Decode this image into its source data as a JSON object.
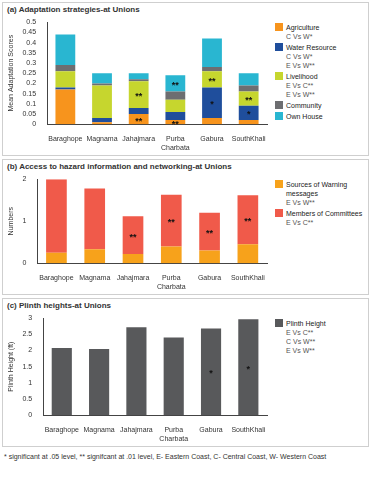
{
  "chart_data": [
    {
      "type": "bar",
      "title": "(a) Adaptation strategies-at Unions",
      "y_label": "Mean Adaptation Scores",
      "stacked": true,
      "grid": false,
      "legend": "right",
      "categories": [
        "Baraghope",
        "Magnama",
        "Jahajmara",
        "Purba Charbata",
        "Gabura",
        "SouthKhali"
      ],
      "series": [
        {
          "name": "Agriculture",
          "color": "#f7941d",
          "values": [
            0.17,
            0.01,
            0.05,
            0.02,
            0.03,
            0.02
          ],
          "notes": [
            "C Vs W*"
          ]
        },
        {
          "name": "Water Resource",
          "color": "#1f4e9c",
          "values": [
            0.01,
            0.02,
            0.03,
            0.04,
            0.15,
            0.07
          ],
          "notes": [
            "C Vs W*",
            "E Vs W**"
          ]
        },
        {
          "name": "Livelihood",
          "color": "#c6d62e",
          "values": [
            0.08,
            0.16,
            0.13,
            0.06,
            0.08,
            0.07
          ],
          "notes": [
            "E Vs C**",
            "E Vs W**"
          ]
        },
        {
          "name": "Community",
          "color": "#6d6e71",
          "values": [
            0.03,
            0.01,
            0.01,
            0.04,
            0.02,
            0.03
          ]
        },
        {
          "name": "Own House",
          "color": "#29b6d1",
          "values": [
            0.15,
            0.05,
            0.03,
            0.08,
            0.14,
            0.06
          ]
        }
      ],
      "annotations": [
        {
          "category": "Jahajmara",
          "series": "Livelihood",
          "label": "**"
        },
        {
          "category": "Jahajmara",
          "series": "Agriculture",
          "label": "**"
        },
        {
          "category": "Purba Charbata",
          "series": "Own House",
          "label": "**"
        },
        {
          "category": "Purba Charbata",
          "series": "Agriculture",
          "label": "**"
        },
        {
          "category": "Gabura",
          "series": "Livelihood",
          "label": "**"
        },
        {
          "category": "Gabura",
          "series": "Water Resource",
          "label": "*"
        },
        {
          "category": "SouthKhali",
          "series": "Livelihood",
          "label": "**"
        },
        {
          "category": "SouthKhali",
          "series": "Water Resource",
          "label": "*"
        }
      ],
      "ylim": [
        0,
        0.5
      ],
      "yticks": [
        0,
        0.05,
        0.1,
        0.15,
        0.2,
        0.25,
        0.3,
        0.35,
        0.4,
        0.45,
        0.5
      ]
    },
    {
      "type": "bar",
      "title": "(b) Access to hazard information and networking-at Unions",
      "y_label": "Numbers",
      "stacked": true,
      "grid": false,
      "legend": "right",
      "categories": [
        "Baraghope",
        "Magnama",
        "Jahajmara",
        "Purba Charbata",
        "Gabura",
        "SouthKhali"
      ],
      "series": [
        {
          "name": "Sources of Warning messages",
          "color": "#f7a21b",
          "values": [
            0.25,
            0.33,
            0.22,
            0.4,
            0.3,
            0.45
          ],
          "notes": [
            "E Vs W**"
          ]
        },
        {
          "name": "Members of Committees",
          "color": "#f05a4a",
          "values": [
            1.75,
            1.45,
            0.9,
            1.23,
            0.9,
            1.17
          ],
          "notes": [
            "E Vs C**"
          ]
        }
      ],
      "annotations": [
        {
          "category": "Jahajmara",
          "series": "Members of Committees",
          "label": "**"
        },
        {
          "category": "Purba Charbata",
          "series": "Members of Committees",
          "label": "**"
        },
        {
          "category": "Gabura",
          "series": "Members of Committees",
          "label": "**"
        },
        {
          "category": "SouthKhali",
          "series": "Members of Committees",
          "label": "**"
        }
      ],
      "ylim": [
        0,
        2
      ],
      "yticks": [
        0,
        1,
        2
      ]
    },
    {
      "type": "bar",
      "title": "(c) Plinth heights-at Unions",
      "y_label": "Plinth Height (ft)",
      "stacked": false,
      "grid": false,
      "legend": "right",
      "categories": [
        "Baraghope",
        "Magnama",
        "Jahajmara",
        "Purba Charbata",
        "Gabura",
        "SouthKhali"
      ],
      "series": [
        {
          "name": "Plinth Height",
          "color": "#58595b",
          "values": [
            2.08,
            2.05,
            2.72,
            2.4,
            2.68,
            2.97
          ],
          "notes": [
            "E Vs C**",
            "C Vs W**",
            "E Vs W**"
          ]
        }
      ],
      "annotations": [
        {
          "category": "Gabura",
          "series": "Plinth Height",
          "label": "*"
        },
        {
          "category": "SouthKhali",
          "series": "Plinth Height",
          "label": "*"
        }
      ],
      "ylim": [
        0,
        3
      ],
      "yticks": [
        0,
        0.5,
        1,
        1.5,
        2,
        2.5,
        3
      ]
    }
  ],
  "footnote": "* significant at .05 level, ** signifcant at .01 level, E- Eastern Coast, C- Central Coast, W- Western Coast"
}
